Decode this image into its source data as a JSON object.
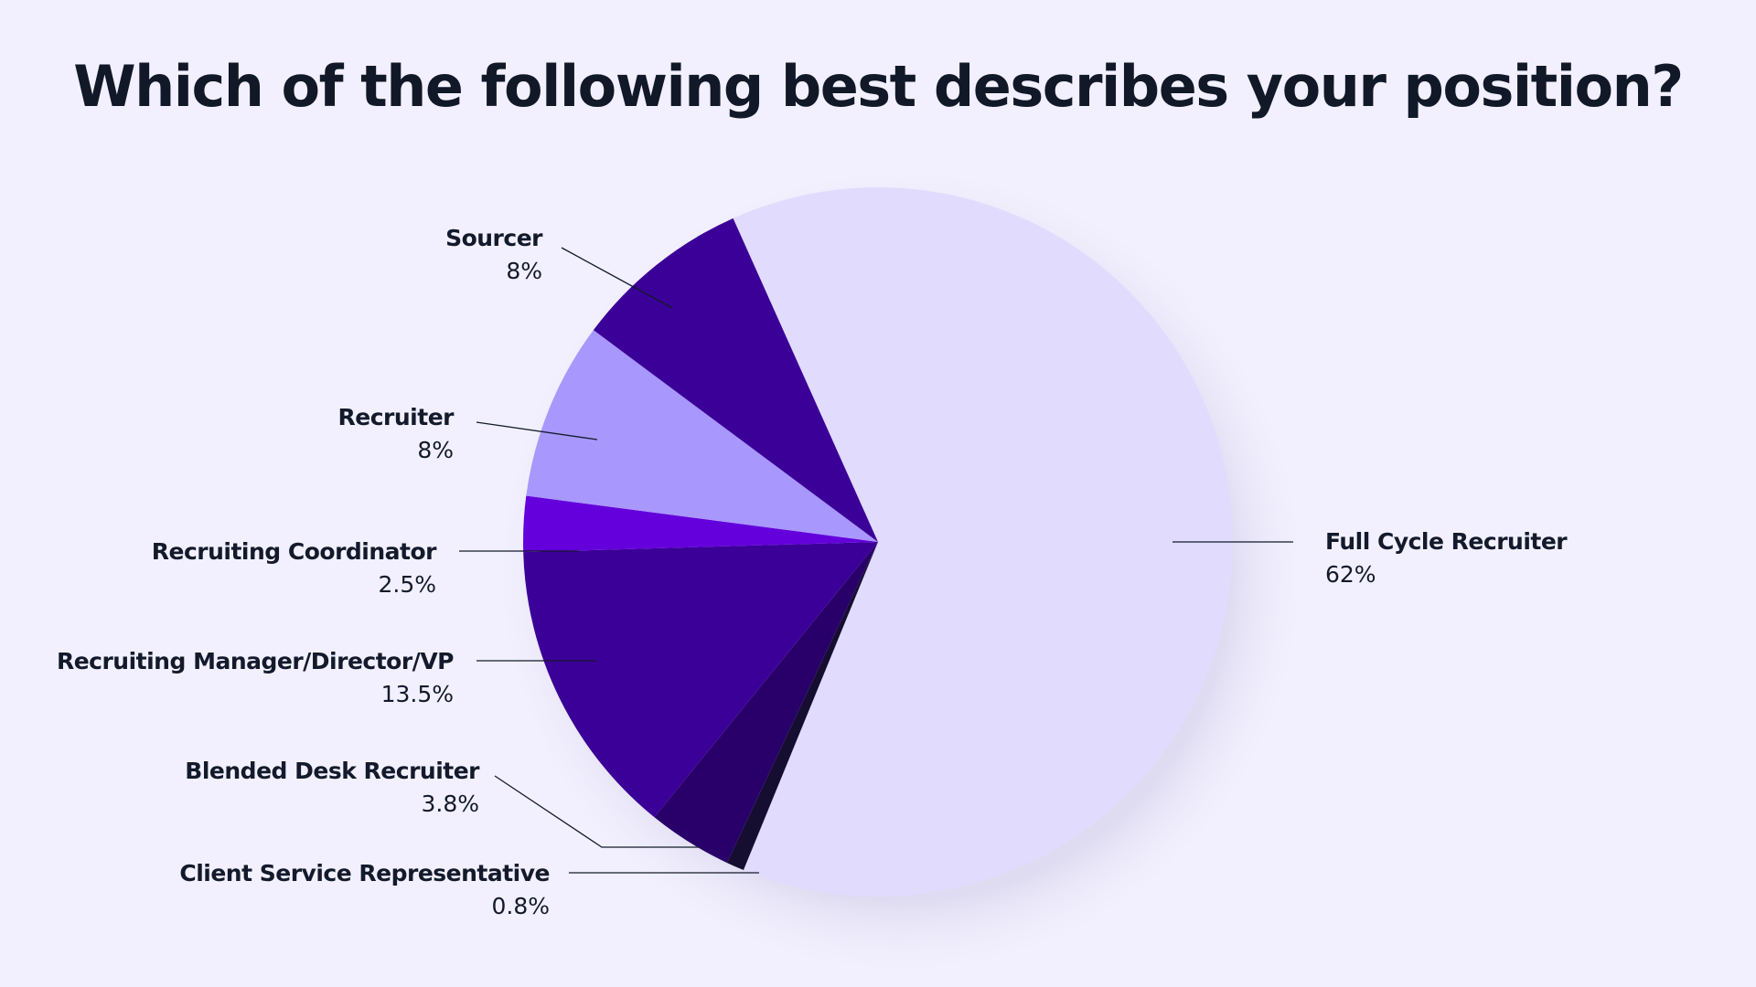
{
  "title": "Which of the following best describes your position?",
  "colors": {
    "background": "#f2f0fe",
    "text": "#131a2b"
  },
  "chart_data": {
    "type": "pie",
    "title": "Which of the following best describes your position?",
    "start_angle_deg": 335.9,
    "direction": "clockwise",
    "slices": [
      {
        "label": "Full Cycle Recruiter",
        "value": 62,
        "display": "62%",
        "color": "#e1dbfd"
      },
      {
        "label": "Client Service Representative",
        "value": 0.8,
        "display": "0.8%",
        "color": "#150e30"
      },
      {
        "label": "Blended Desk Recruiter",
        "value": 3.8,
        "display": "3.8%",
        "color": "#290069"
      },
      {
        "label": "Recruiting Manager/Director/VP",
        "value": 13.5,
        "display": "13.5%",
        "color": "#3b0098"
      },
      {
        "label": "Recruiting Coordinator",
        "value": 2.5,
        "display": "2.5%",
        "color": "#6400dc"
      },
      {
        "label": "Recruiter",
        "value": 8,
        "display": "8%",
        "color": "#a897fd"
      },
      {
        "label": "Sourcer",
        "value": 8,
        "display": "8%",
        "color": "#3b0098"
      }
    ],
    "legend_position": "callout-labels"
  },
  "labels": [
    {
      "key": "sourcer",
      "name": "Sourcer",
      "pct": "8%"
    },
    {
      "key": "recruiter",
      "name": "Recruiter",
      "pct": "8%"
    },
    {
      "key": "coordinator",
      "name": "Recruiting Coordinator",
      "pct": "2.5%"
    },
    {
      "key": "manager",
      "name": "Recruiting Manager/Director/VP",
      "pct": "13.5%"
    },
    {
      "key": "blended",
      "name": "Blended Desk Recruiter",
      "pct": "3.8%"
    },
    {
      "key": "client",
      "name": "Client Service Representative",
      "pct": "0.8%"
    },
    {
      "key": "fullcycle",
      "name": "Full Cycle Recruiter",
      "pct": "62%"
    }
  ]
}
